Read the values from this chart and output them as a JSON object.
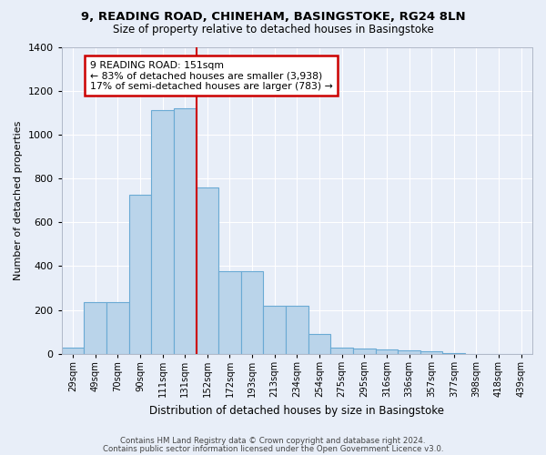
{
  "title": "9, READING ROAD, CHINEHAM, BASINGSTOKE, RG24 8LN",
  "subtitle": "Size of property relative to detached houses in Basingstoke",
  "xlabel": "Distribution of detached houses by size in Basingstoke",
  "ylabel": "Number of detached properties",
  "categories": [
    "29sqm",
    "49sqm",
    "70sqm",
    "90sqm",
    "111sqm",
    "131sqm",
    "152sqm",
    "172sqm",
    "193sqm",
    "213sqm",
    "234sqm",
    "254sqm",
    "275sqm",
    "295sqm",
    "316sqm",
    "336sqm",
    "357sqm",
    "377sqm",
    "398sqm",
    "418sqm",
    "439sqm"
  ],
  "values": [
    30,
    235,
    235,
    725,
    1110,
    1120,
    760,
    375,
    375,
    220,
    220,
    90,
    30,
    25,
    20,
    15,
    10,
    5,
    0,
    0,
    0
  ],
  "bar_color": "#bad4ea",
  "bar_edgecolor": "#6aaad4",
  "bg_color": "#e8eef8",
  "grid_color": "#ffffff",
  "vline_color": "#cc0000",
  "annotation_text": "9 READING ROAD: 151sqm\n← 83% of detached houses are smaller (3,938)\n17% of semi-detached houses are larger (783) →",
  "annotation_box_color": "#cc0000",
  "annotation_bg": "#ffffff",
  "ylim": [
    0,
    1400
  ],
  "yticks": [
    0,
    200,
    400,
    600,
    800,
    1000,
    1200,
    1400
  ],
  "footer1": "Contains HM Land Registry data © Crown copyright and database right 2024.",
  "footer2": "Contains public sector information licensed under the Open Government Licence v3.0."
}
